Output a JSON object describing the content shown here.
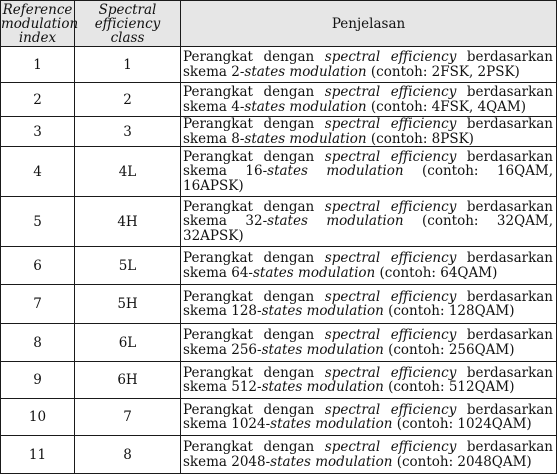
{
  "headers": {
    "reference_index": [
      "Reference",
      "modulation",
      "index"
    ],
    "efficiency_class": [
      "Spectral",
      "efficiency",
      "class"
    ],
    "description": "Penjelasan"
  },
  "rows": [
    {
      "index": "1",
      "class": "1",
      "desc": {
        "p1": "Perangkat dengan ",
        "e1": "spectral efficiency",
        "p2": " berdasarkan skema 2-",
        "e2": "states modulation",
        "p3": " (contoh: 2FSK, 2PSK)"
      }
    },
    {
      "index": "2",
      "class": "2",
      "desc": {
        "p1": "Perangkat dengan ",
        "e1": "spectral efficiency",
        "p2": " berdasarkan skema 4-",
        "e2": "states modulation",
        "p3": " (contoh: 4FSK, 4QAM)"
      }
    },
    {
      "index": "3",
      "class": "3",
      "desc": {
        "p1": "Perangkat dengan ",
        "e1": "spectral efficiency",
        "p2": " berdasarkan skema 8-",
        "e2": "states modulation",
        "p3": " (contoh: 8PSK)"
      }
    },
    {
      "index": "4",
      "class": "4L",
      "desc": {
        "p1": "Perangkat dengan ",
        "e1": "spectral efficiency",
        "p2": " berdasarkan skema 16-",
        "e2": "states modulation",
        "p3": " (contoh: 16QAM, 16APSK)"
      }
    },
    {
      "index": "5",
      "class": "4H",
      "desc": {
        "p1": "Perangkat dengan ",
        "e1": "spectral efficiency",
        "p2": " berdasarkan skema 32-",
        "e2": "states modulation",
        "p3": " (contoh: 32QAM, 32APSK)"
      }
    },
    {
      "index": "6",
      "class": "5L",
      "desc": {
        "p1": "Perangkat dengan ",
        "e1": "spectral efficiency",
        "p2": " berdasarkan skema 64-",
        "e2": "states modulation",
        "p3": " (contoh: 64QAM)"
      }
    },
    {
      "index": "7",
      "class": "5H",
      "desc": {
        "p1": "Perangkat dengan ",
        "e1": "spectral efficiency",
        "p2": " berdasarkan skema 128-",
        "e2": "states modulation",
        "p3": " (contoh: 128QAM)"
      }
    },
    {
      "index": "8",
      "class": "6L",
      "desc": {
        "p1": "Perangkat dengan ",
        "e1": "spectral efficiency",
        "p2": " berdasarkan skema 256-",
        "e2": "states modulation",
        "p3": " (contoh: 256QAM)"
      }
    },
    {
      "index": "9",
      "class": "6H",
      "desc": {
        "p1": "Perangkat dengan ",
        "e1": "spectral efficiency",
        "p2": " berdasarkan skema 512-",
        "e2": "states modulation",
        "p3": " (contoh: 512QAM)"
      }
    },
    {
      "index": "10",
      "class": "7",
      "desc": {
        "p1": "Perangkat dengan ",
        "e1": "spectral efficiency",
        "p2": " berdasarkan skema 1024-",
        "e2": "states modulation",
        "p3": " (contoh: 1024QAM)"
      }
    },
    {
      "index": "11",
      "class": "8",
      "desc": {
        "p1": "Perangkat dengan ",
        "e1": "spectral efficiency",
        "p2": " berdasarkan skema 2048-",
        "e2": "states modulation",
        "p3": " (contoh: 2048QAM)"
      }
    }
  ]
}
